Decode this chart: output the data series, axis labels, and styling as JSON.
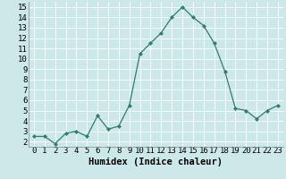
{
  "x": [
    0,
    1,
    2,
    3,
    4,
    5,
    6,
    7,
    8,
    9,
    10,
    11,
    12,
    13,
    14,
    15,
    16,
    17,
    18,
    19,
    20,
    21,
    22,
    23
  ],
  "y": [
    2.5,
    2.5,
    1.8,
    2.8,
    3.0,
    2.5,
    4.5,
    3.2,
    3.5,
    5.5,
    10.5,
    11.5,
    12.5,
    14.0,
    15.0,
    14.0,
    13.2,
    11.5,
    8.8,
    5.2,
    5.0,
    4.2,
    5.0,
    5.5
  ],
  "line_color": "#2e7d6e",
  "marker": "D",
  "marker_size": 2,
  "bg_color": "#cce8e8",
  "grid_color": "#ffffff",
  "xlabel": "Humidex (Indice chaleur)",
  "ylim": [
    1.5,
    15.5
  ],
  "xlim": [
    -0.5,
    23.5
  ],
  "yticks": [
    2,
    3,
    4,
    5,
    6,
    7,
    8,
    9,
    10,
    11,
    12,
    13,
    14,
    15
  ],
  "xticks": [
    0,
    1,
    2,
    3,
    4,
    5,
    6,
    7,
    8,
    9,
    10,
    11,
    12,
    13,
    14,
    15,
    16,
    17,
    18,
    19,
    20,
    21,
    22,
    23
  ],
  "xlabel_fontsize": 7.5,
  "tick_fontsize": 6.5
}
